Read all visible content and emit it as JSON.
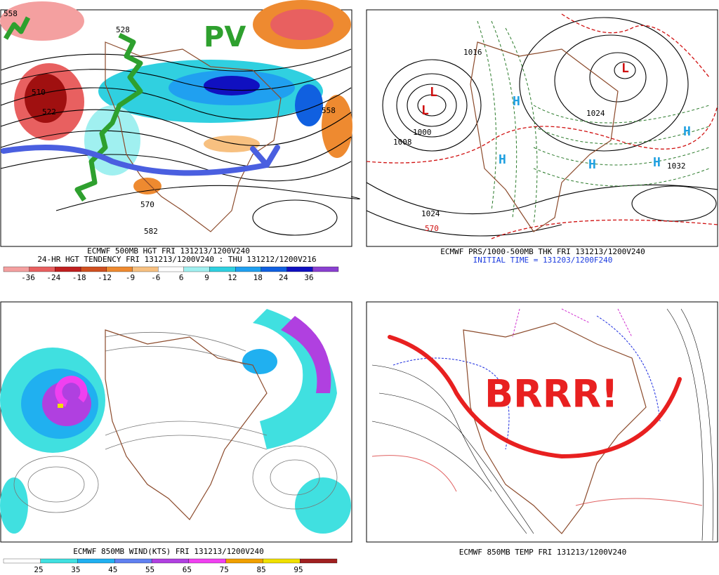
{
  "panels": [
    {
      "captions": [
        "ECMWF 500MB HGT FRI 131213/1200V240",
        "24-HR HGT TENDENCY FRI 131213/1200V240 : THU 131212/1200V216"
      ],
      "contour_labels": [
        "510",
        "522",
        "528",
        "558",
        "570",
        "582",
        "558"
      ],
      "annotation": "PV",
      "colorbar": {
        "labels": [
          -36,
          -24,
          -18,
          -12,
          -9,
          -6,
          6,
          9,
          12,
          18,
          24,
          36
        ],
        "colors": [
          "#f4a0a0",
          "#e86060",
          "#c02020",
          "#d05020",
          "#ee8a30",
          "#f7c080",
          "#ffffff",
          "#a0f0f0",
          "#30d0e0",
          "#20a0f0",
          "#1060e0",
          "#1010c0",
          "#8a40d0"
        ]
      }
    },
    {
      "captions": [
        "ECMWF PRS/1000-500MB THK FRI 131213/1200V240",
        "INITIAL TIME = 131203/1200F240"
      ],
      "contour_labels": [
        "1000",
        "1008",
        "1016",
        "1024",
        "1024",
        "1032",
        "570"
      ],
      "highs": [
        "H",
        "H",
        "H",
        "H",
        "H"
      ],
      "lows": [
        "L",
        "L",
        "L"
      ]
    },
    {
      "captions": [
        "ECMWF 850MB WIND(KTS) FRI 131213/1200V240"
      ],
      "colorbar": {
        "labels": [
          25,
          35,
          45,
          55,
          65,
          75,
          85,
          95
        ],
        "colors": [
          "#ffffff",
          "#40e0e0",
          "#20b0f0",
          "#6080f0",
          "#b040e0",
          "#f040f0",
          "#f0a000",
          "#f0e000",
          "#a02020"
        ]
      }
    },
    {
      "captions": [
        "ECMWF 850MB TEMP FRI 131213/1200V240"
      ],
      "annotation": "BRRR!"
    }
  ]
}
